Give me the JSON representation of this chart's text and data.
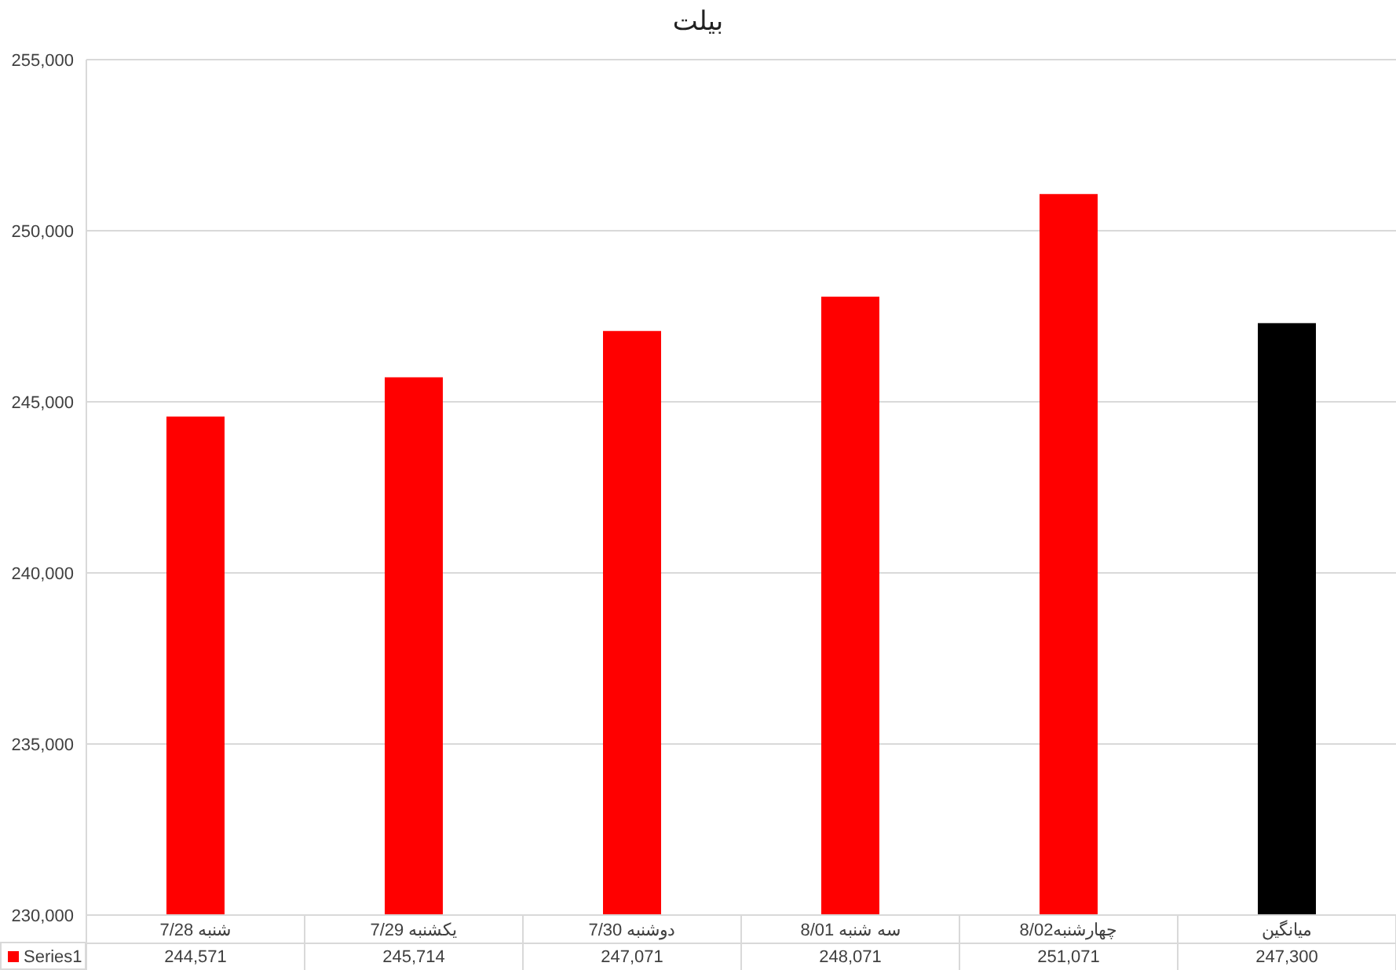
{
  "chart_data": {
    "type": "bar",
    "title": "بیلت",
    "categories": [
      "شنبه 7/28",
      "یکشنبه 7/29",
      "دوشنبه 7/30",
      "سه شنبه 8/01",
      "چهارشنبه8/02",
      "میانگین"
    ],
    "series": [
      {
        "name": "Series1",
        "color": "#ff0000",
        "colors": [
          "#ff0000",
          "#ff0000",
          "#ff0000",
          "#ff0000",
          "#ff0000",
          "#000000"
        ],
        "values": [
          244571,
          245714,
          247071,
          248071,
          251071,
          247300
        ],
        "value_labels": [
          "244,571",
          "245,714",
          "247,071",
          "248,071",
          "251,071",
          "247,300"
        ]
      }
    ],
    "ylim": [
      230000,
      255000
    ],
    "yticks": [
      {
        "value": 230000,
        "label": "230,000"
      },
      {
        "value": 235000,
        "label": "235,000"
      },
      {
        "value": 240000,
        "label": "240,000"
      },
      {
        "value": 245000,
        "label": "245,000"
      },
      {
        "value": 250000,
        "label": "250,000"
      },
      {
        "value": 255000,
        "label": "255,000"
      }
    ],
    "grid": "y",
    "legend": "bottom"
  }
}
